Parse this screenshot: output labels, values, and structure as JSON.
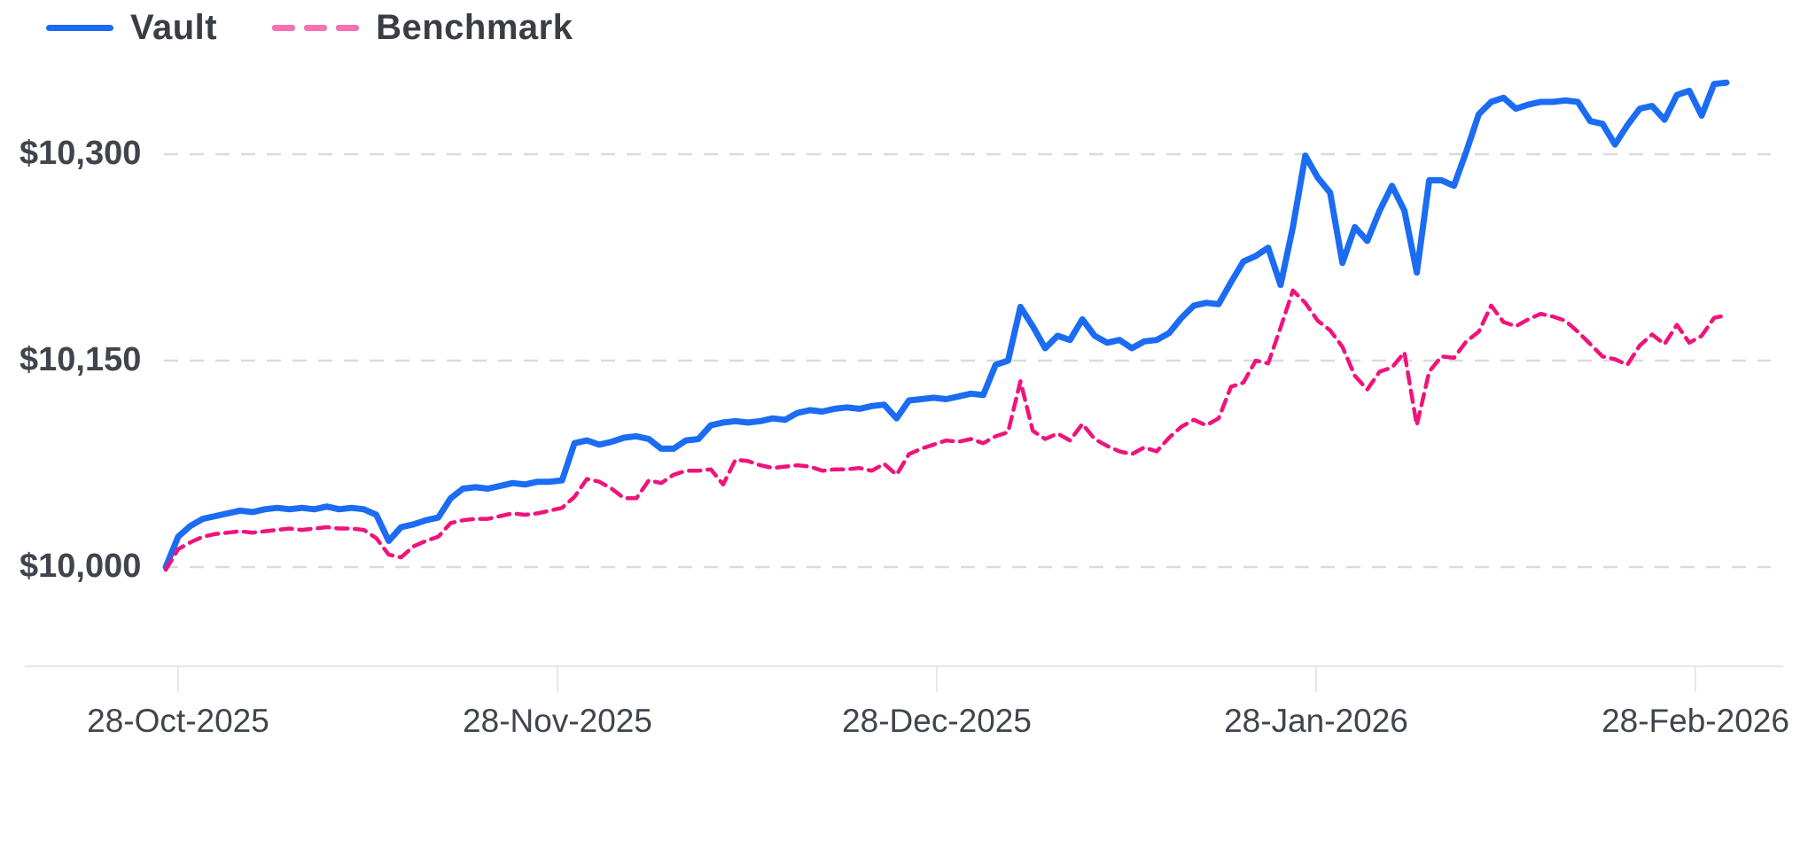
{
  "legend": {
    "items": [
      {
        "label": "Vault",
        "color": "#1b6cf2",
        "swatch_style": "solid"
      },
      {
        "label": "Benchmark",
        "color": "#f671b0",
        "swatch_style": "dashed"
      }
    ]
  },
  "chart_data": {
    "type": "line",
    "title": "",
    "xlabel": "",
    "ylabel": "",
    "legend_position": "top-left",
    "grid": "horizontal-dashed",
    "y_tick_values": [
      10000,
      10150,
      10300
    ],
    "y_tick_labels": [
      "$10,000",
      "$10,150",
      "$10,300"
    ],
    "x_tick_labels": [
      "28-Oct-2025",
      "28-Nov-2025",
      "28-Dec-2025",
      "28-Jan-2026",
      "28-Feb-2026"
    ],
    "y_range_hint": [
      9930,
      10370
    ],
    "series": [
      {
        "name": "Vault",
        "color": "#1b6cf2",
        "style": "solid",
        "values": [
          10000,
          10022,
          10030,
          10035,
          10037,
          10039,
          10041,
          10040,
          10042,
          10043,
          10042,
          10043,
          10042,
          10044,
          10042,
          10043,
          10042,
          10038,
          10019,
          10029,
          10031,
          10034,
          10036,
          10050,
          10057,
          10058,
          10057,
          10059,
          10061,
          10060,
          10062,
          10062,
          10063,
          10090,
          10092,
          10089,
          10091,
          10094,
          10095,
          10093,
          10086,
          10086,
          10092,
          10093,
          10103,
          10105,
          10106,
          10105,
          10106,
          10108,
          10107,
          10112,
          10114,
          10113,
          10115,
          10116,
          10115,
          10117,
          10118,
          10108,
          10121,
          10122,
          10123,
          10122,
          10124,
          10126,
          10125,
          10147,
          10150,
          10189,
          10175,
          10159,
          10168,
          10165,
          10180,
          10168,
          10163,
          10165,
          10159,
          10164,
          10165,
          10170,
          10181,
          10190,
          10192,
          10191,
          10207,
          10222,
          10226,
          10232,
          10205,
          10247,
          10299,
          10283,
          10272,
          10221,
          10247,
          10237,
          10259,
          10277,
          10259,
          10214,
          10281,
          10281,
          10277,
          10302,
          10329,
          10338,
          10341,
          10333,
          10336,
          10338,
          10338,
          10339,
          10338,
          10324,
          10322,
          10307,
          10321,
          10333,
          10335,
          10325,
          10343,
          10346,
          10328,
          10351,
          10352
        ]
      },
      {
        "name": "Benchmark",
        "color": "#f0137b",
        "style": "dashed",
        "values": [
          9998,
          10013,
          10018,
          10022,
          10024,
          10025,
          10026,
          10025,
          10026,
          10027,
          10028,
          10027,
          10028,
          10029,
          10028,
          10028,
          10027,
          10021,
          10009,
          10007,
          10015,
          10019,
          10022,
          10032,
          10034,
          10035,
          10035,
          10037,
          10039,
          10038,
          10039,
          10041,
          10043,
          10051,
          10064,
          10062,
          10057,
          10050,
          10050,
          10063,
          10061,
          10067,
          10070,
          10070,
          10071,
          10060,
          10078,
          10077,
          10074,
          10072,
          10073,
          10074,
          10073,
          10070,
          10071,
          10071,
          10072,
          10070,
          10075,
          10067,
          10082,
          10086,
          10089,
          10092,
          10091,
          10093,
          10090,
          10095,
          10098,
          10135,
          10099,
          10093,
          10097,
          10092,
          10104,
          10093,
          10088,
          10084,
          10082,
          10087,
          10084,
          10094,
          10102,
          10107,
          10103,
          10108,
          10131,
          10134,
          10150,
          10148,
          10174,
          10201,
          10192,
          10179,
          10172,
          10160,
          10139,
          10129,
          10142,
          10145,
          10156,
          10103,
          10142,
          10153,
          10152,
          10164,
          10171,
          10190,
          10178,
          10175,
          10180,
          10184,
          10182,
          10179,
          10171,
          10162,
          10153,
          10151,
          10147,
          10161,
          10169,
          10162,
          10176,
          10163,
          10168,
          10181,
          10183
        ]
      }
    ]
  },
  "colors": {
    "gridline": "#d9dbde",
    "axis_line": "#e4e6e9",
    "tick_mark": "#e7e8ea",
    "label_text": "#40444c",
    "legend_text": "#3a3d43"
  }
}
